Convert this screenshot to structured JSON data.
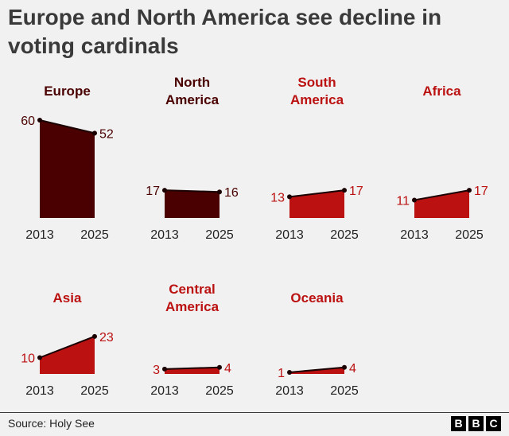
{
  "title": "Europe and North America see decline in voting cardinals",
  "source": "Source: Holy See",
  "logo_letters": [
    "B",
    "B",
    "C"
  ],
  "colors": {
    "dark": "#4a0000",
    "red": "#bb1111"
  },
  "chart_data": [
    {
      "type": "area",
      "region_lines": [
        "Europe"
      ],
      "x": [
        "2013",
        "2025"
      ],
      "values": [
        60,
        52
      ],
      "color": "dark"
    },
    {
      "type": "area",
      "region_lines": [
        "North",
        "America"
      ],
      "x": [
        "2013",
        "2025"
      ],
      "values": [
        17,
        16
      ],
      "color": "dark"
    },
    {
      "type": "area",
      "region_lines": [
        "South",
        "America"
      ],
      "x": [
        "2013",
        "2025"
      ],
      "values": [
        13,
        17
      ],
      "color": "red"
    },
    {
      "type": "area",
      "region_lines": [
        "Africa"
      ],
      "x": [
        "2013",
        "2025"
      ],
      "values": [
        11,
        17
      ],
      "color": "red"
    },
    {
      "type": "area",
      "region_lines": [
        "Asia"
      ],
      "x": [
        "2013",
        "2025"
      ],
      "values": [
        10,
        23
      ],
      "color": "red"
    },
    {
      "type": "area",
      "region_lines": [
        "Central",
        "America"
      ],
      "x": [
        "2013",
        "2025"
      ],
      "values": [
        3,
        4
      ],
      "color": "red"
    },
    {
      "type": "area",
      "region_lines": [
        "Oceania"
      ],
      "x": [
        "2013",
        "2025"
      ],
      "values": [
        1,
        4
      ],
      "color": "red"
    }
  ]
}
